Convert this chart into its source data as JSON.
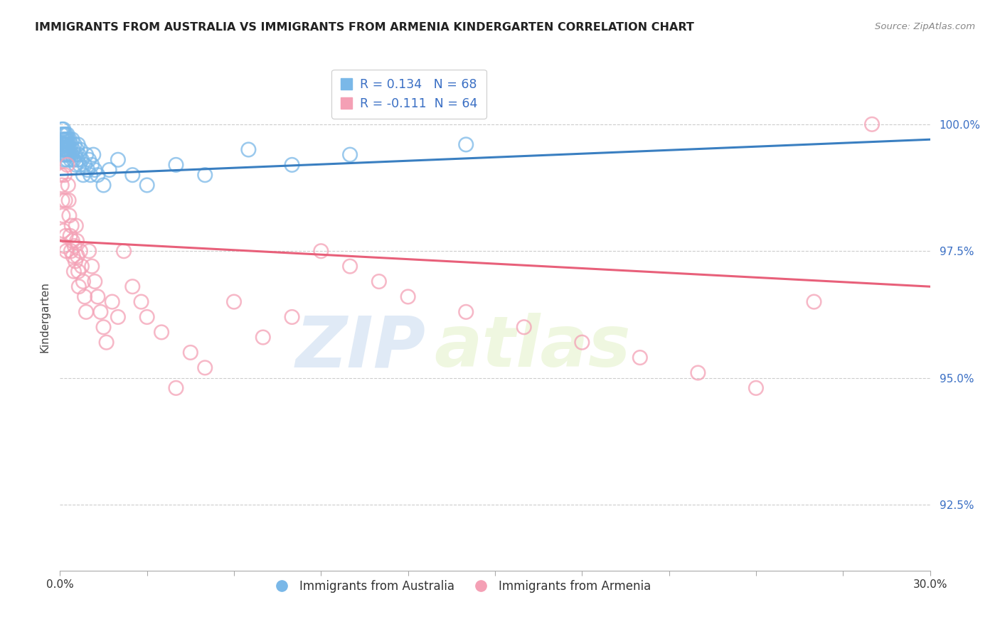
{
  "title": "IMMIGRANTS FROM AUSTRALIA VS IMMIGRANTS FROM ARMENIA KINDERGARTEN CORRELATION CHART",
  "source": "Source: ZipAtlas.com",
  "ylabel": "Kindergarten",
  "yticks": [
    92.5,
    95.0,
    97.5,
    100.0
  ],
  "ytick_labels": [
    "92.5%",
    "95.0%",
    "97.5%",
    "100.0%"
  ],
  "xmin": 0.0,
  "xmax": 30.0,
  "ymin": 91.2,
  "ymax": 101.2,
  "australia_color": "#7ab8e8",
  "armenia_color": "#f4a0b5",
  "australia_line_color": "#3a7fc1",
  "armenia_line_color": "#e8607a",
  "r_australia": 0.134,
  "n_australia": 68,
  "r_armenia": -0.111,
  "n_armenia": 64,
  "legend_label_australia": "Immigrants from Australia",
  "legend_label_armenia": "Immigrants from Armenia",
  "watermark_zip": "ZIP",
  "watermark_atlas": "atlas",
  "aus_x": [
    0.05,
    0.07,
    0.08,
    0.09,
    0.1,
    0.1,
    0.11,
    0.12,
    0.13,
    0.14,
    0.15,
    0.15,
    0.16,
    0.17,
    0.18,
    0.19,
    0.2,
    0.2,
    0.21,
    0.22,
    0.23,
    0.24,
    0.25,
    0.25,
    0.26,
    0.27,
    0.28,
    0.3,
    0.32,
    0.33,
    0.35,
    0.37,
    0.38,
    0.4,
    0.42,
    0.45,
    0.47,
    0.5,
    0.52,
    0.55,
    0.58,
    0.6,
    0.62,
    0.65,
    0.68,
    0.7,
    0.75,
    0.8,
    0.85,
    0.9,
    0.95,
    1.0,
    1.05,
    1.1,
    1.15,
    1.2,
    1.3,
    1.5,
    1.7,
    2.0,
    2.5,
    3.0,
    4.0,
    5.0,
    6.5,
    8.0,
    10.0,
    14.0
  ],
  "aus_y": [
    99.8,
    99.9,
    99.5,
    99.7,
    99.6,
    99.4,
    99.8,
    99.9,
    99.5,
    99.7,
    99.6,
    99.3,
    99.8,
    99.4,
    99.7,
    99.5,
    99.8,
    99.6,
    99.4,
    99.7,
    99.5,
    99.3,
    99.6,
    99.8,
    99.4,
    99.7,
    99.5,
    99.6,
    99.4,
    99.7,
    99.5,
    99.3,
    99.6,
    99.4,
    99.7,
    99.5,
    99.3,
    99.6,
    99.4,
    99.2,
    99.5,
    99.3,
    99.6,
    99.4,
    99.2,
    99.5,
    99.3,
    99.0,
    99.2,
    99.4,
    99.1,
    99.3,
    99.0,
    99.2,
    99.4,
    99.1,
    99.0,
    98.8,
    99.1,
    99.3,
    99.0,
    98.8,
    99.2,
    99.0,
    99.5,
    99.2,
    99.4,
    99.6
  ],
  "arm_x": [
    0.04,
    0.06,
    0.08,
    0.1,
    0.12,
    0.14,
    0.16,
    0.18,
    0.2,
    0.22,
    0.25,
    0.28,
    0.3,
    0.32,
    0.35,
    0.38,
    0.4,
    0.43,
    0.45,
    0.48,
    0.5,
    0.53,
    0.55,
    0.58,
    0.6,
    0.63,
    0.65,
    0.7,
    0.75,
    0.8,
    0.85,
    0.9,
    1.0,
    1.1,
    1.2,
    1.3,
    1.4,
    1.5,
    1.6,
    1.8,
    2.0,
    2.2,
    2.5,
    2.8,
    3.0,
    3.5,
    4.0,
    4.5,
    5.0,
    6.0,
    7.0,
    8.0,
    9.0,
    10.0,
    11.0,
    12.0,
    14.0,
    16.0,
    18.0,
    20.0,
    22.0,
    24.0,
    26.0,
    28.0
  ],
  "arm_y": [
    99.0,
    98.8,
    98.5,
    98.2,
    97.9,
    97.6,
    99.0,
    98.5,
    97.8,
    97.5,
    99.2,
    98.8,
    98.5,
    98.2,
    97.8,
    97.5,
    98.0,
    97.7,
    97.4,
    97.1,
    97.6,
    97.3,
    98.0,
    97.7,
    97.4,
    97.1,
    96.8,
    97.5,
    97.2,
    96.9,
    96.6,
    96.3,
    97.5,
    97.2,
    96.9,
    96.6,
    96.3,
    96.0,
    95.7,
    96.5,
    96.2,
    97.5,
    96.8,
    96.5,
    96.2,
    95.9,
    94.8,
    95.5,
    95.2,
    96.5,
    95.8,
    96.2,
    97.5,
    97.2,
    96.9,
    96.6,
    96.3,
    96.0,
    95.7,
    95.4,
    95.1,
    94.8,
    96.5,
    100.0
  ]
}
